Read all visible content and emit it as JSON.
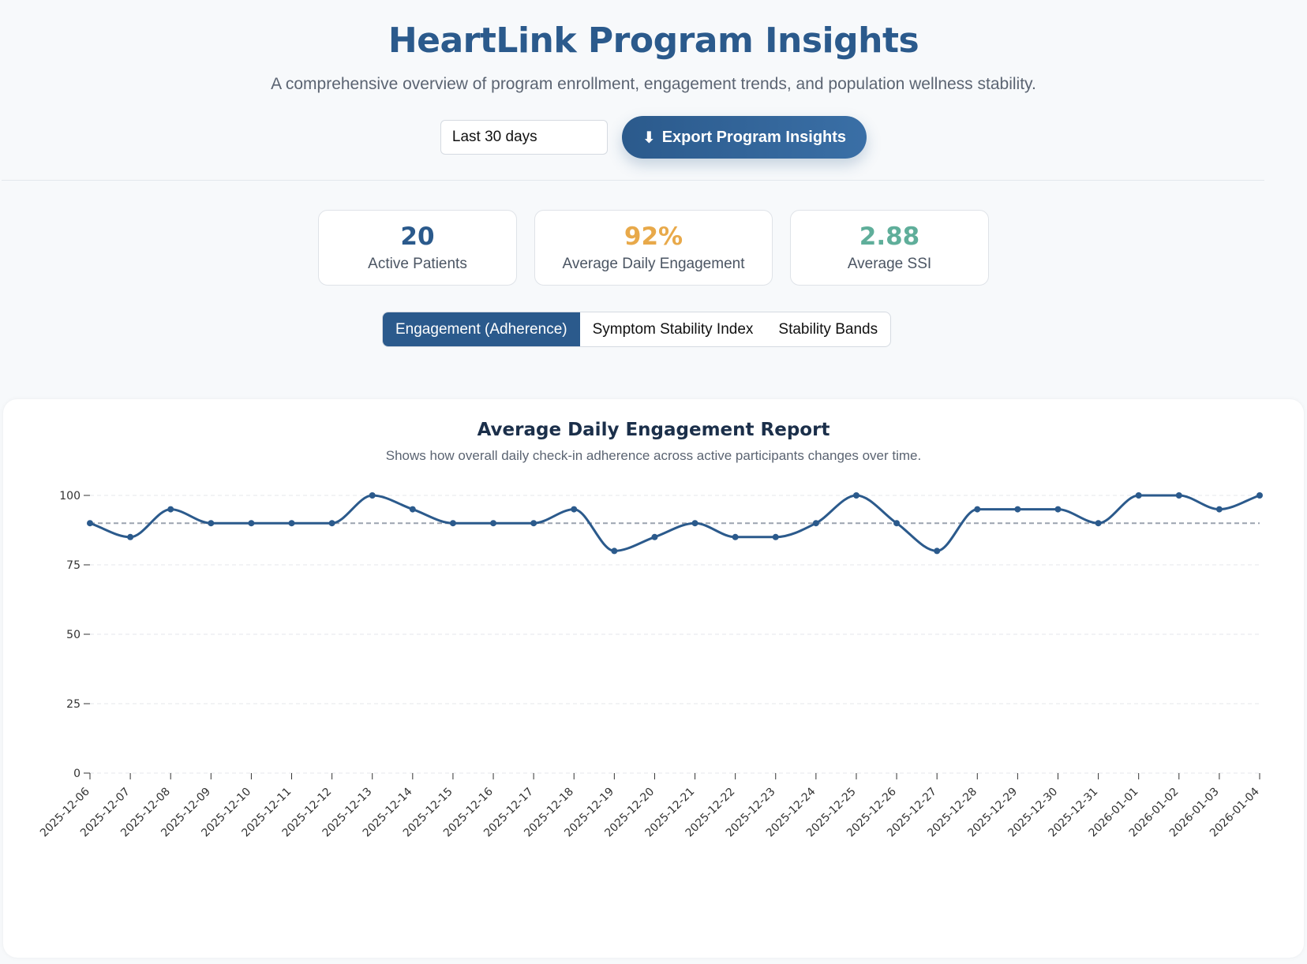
{
  "header": {
    "title": "HeartLink Program Insights",
    "subtitle": "A comprehensive overview of program enrollment, engagement trends, and population wellness stability."
  },
  "controls": {
    "range_selected": "Last 30 days",
    "export_icon": "⬇",
    "export_label": "Export Program Insights"
  },
  "kpis": [
    {
      "value": "20",
      "label": "Active Patients",
      "color": "#2b5a8c"
    },
    {
      "value": "92%",
      "label": "Average Daily Engagement",
      "color": "#e8a94a"
    },
    {
      "value": "2.88",
      "label": "Average SSI",
      "color": "#5fae9a"
    }
  ],
  "tabs": [
    {
      "label": "Engagement (Adherence)",
      "active": true
    },
    {
      "label": "Symptom Stability Index",
      "active": false
    },
    {
      "label": "Stability Bands",
      "active": false
    }
  ],
  "colors": {
    "line": "#2b5a8c",
    "reference": "#9ca3af",
    "grid": "#e5e7eb"
  },
  "chart_data": {
    "type": "line",
    "title": "Average Daily Engagement Report",
    "subtitle": "Shows how overall daily check-in adherence across active participants changes over time.",
    "xlabel": "",
    "ylabel": "",
    "ylim": [
      0,
      100
    ],
    "yticks": [
      0,
      25,
      50,
      75,
      100
    ],
    "grid": true,
    "reference_line": 90,
    "x": [
      "2025-12-06",
      "2025-12-07",
      "2025-12-08",
      "2025-12-09",
      "2025-12-10",
      "2025-12-11",
      "2025-12-12",
      "2025-12-13",
      "2025-12-14",
      "2025-12-15",
      "2025-12-16",
      "2025-12-17",
      "2025-12-18",
      "2025-12-19",
      "2025-12-20",
      "2025-12-21",
      "2025-12-22",
      "2025-12-23",
      "2025-12-24",
      "2025-12-25",
      "2025-12-26",
      "2025-12-27",
      "2025-12-28",
      "2025-12-29",
      "2025-12-30",
      "2025-12-31",
      "2026-01-01",
      "2026-01-02",
      "2026-01-03",
      "2026-01-04"
    ],
    "series": [
      {
        "name": "Average Daily Engagement",
        "values": [
          90,
          85,
          95,
          90,
          90,
          90,
          90,
          100,
          95,
          90,
          90,
          90,
          95,
          80,
          85,
          90,
          85,
          85,
          90,
          100,
          90,
          80,
          95,
          95,
          95,
          90,
          100,
          100,
          95,
          100
        ]
      }
    ]
  }
}
